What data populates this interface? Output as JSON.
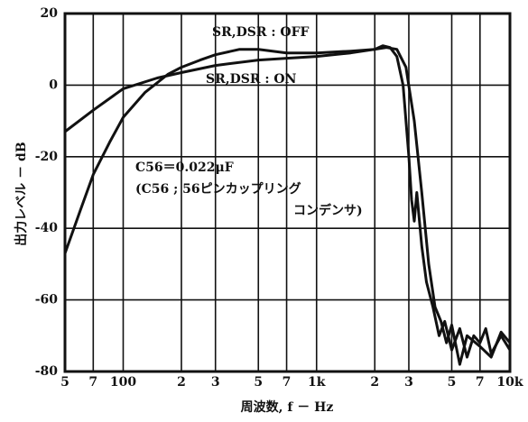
{
  "chart_data": {
    "type": "line",
    "x_label": "周波数, f － Hz",
    "y_label": "出力レベル － dB",
    "annotations": [
      "C56＝0.022μF",
      "(C56 ; 56ピンカップリング",
      "コンデンサ)"
    ],
    "xscale": "log",
    "grid": true,
    "xlim": [
      50,
      10000
    ],
    "xticks": [
      {
        "value": 50,
        "label": "5"
      },
      {
        "value": 70,
        "label": "7"
      },
      100,
      {
        "value": 200,
        "label": "2"
      },
      {
        "value": 300,
        "label": "3"
      },
      {
        "value": 500,
        "label": "5"
      },
      {
        "value": 700,
        "label": "7"
      },
      {
        "value": 1000,
        "label": "1k"
      },
      {
        "value": 2000,
        "label": "2"
      },
      {
        "value": 3000,
        "label": "3"
      },
      {
        "value": 5000,
        "label": "5"
      },
      {
        "value": 7000,
        "label": "7"
      },
      {
        "value": 10000,
        "label": "10k"
      }
    ],
    "ylim": [
      -80,
      20
    ],
    "yticks": [
      20,
      0,
      -20,
      -40,
      -60,
      -80
    ],
    "series": [
      {
        "name": "SR,DSR : OFF",
        "color": "#111111",
        "x": [
          50,
          60,
          70,
          85,
          100,
          130,
          170,
          200,
          250,
          300,
          400,
          500,
          700,
          1000,
          1500,
          2000,
          2200,
          2400,
          2600,
          2800,
          3000,
          3100,
          3200,
          3300,
          3500,
          3700,
          4000,
          4300,
          4600,
          5000,
          5500,
          6000,
          6500,
          7000,
          7500,
          8000,
          9000,
          10000
        ],
        "values": [
          -47,
          -35,
          -25,
          -16,
          -9,
          -2,
          3,
          5,
          7,
          8.5,
          10,
          10,
          9,
          9,
          9.5,
          10,
          11,
          10.5,
          8,
          0,
          -20,
          -32,
          -38,
          -30,
          -45,
          -55,
          -62,
          -70,
          -66,
          -74,
          -68,
          -76,
          -70,
          -72,
          -68,
          -75,
          -70,
          -74
        ]
      },
      {
        "name": "SR,DSR : ON",
        "color": "#111111",
        "x": [
          50,
          70,
          100,
          150,
          200,
          300,
          500,
          700,
          1000,
          1500,
          2000,
          2300,
          2600,
          2900,
          3200,
          3500,
          3800,
          4100,
          4400,
          4700,
          5000,
          5500,
          6000,
          7000,
          8000,
          9000,
          10000
        ],
        "values": [
          -13,
          -7,
          -1,
          2,
          3.5,
          5.5,
          7,
          7.5,
          8,
          9,
          10,
          10.5,
          10,
          5,
          -10,
          -30,
          -50,
          -62,
          -66,
          -72,
          -67,
          -78,
          -70,
          -73,
          -76,
          -69,
          -72
        ]
      }
    ]
  }
}
